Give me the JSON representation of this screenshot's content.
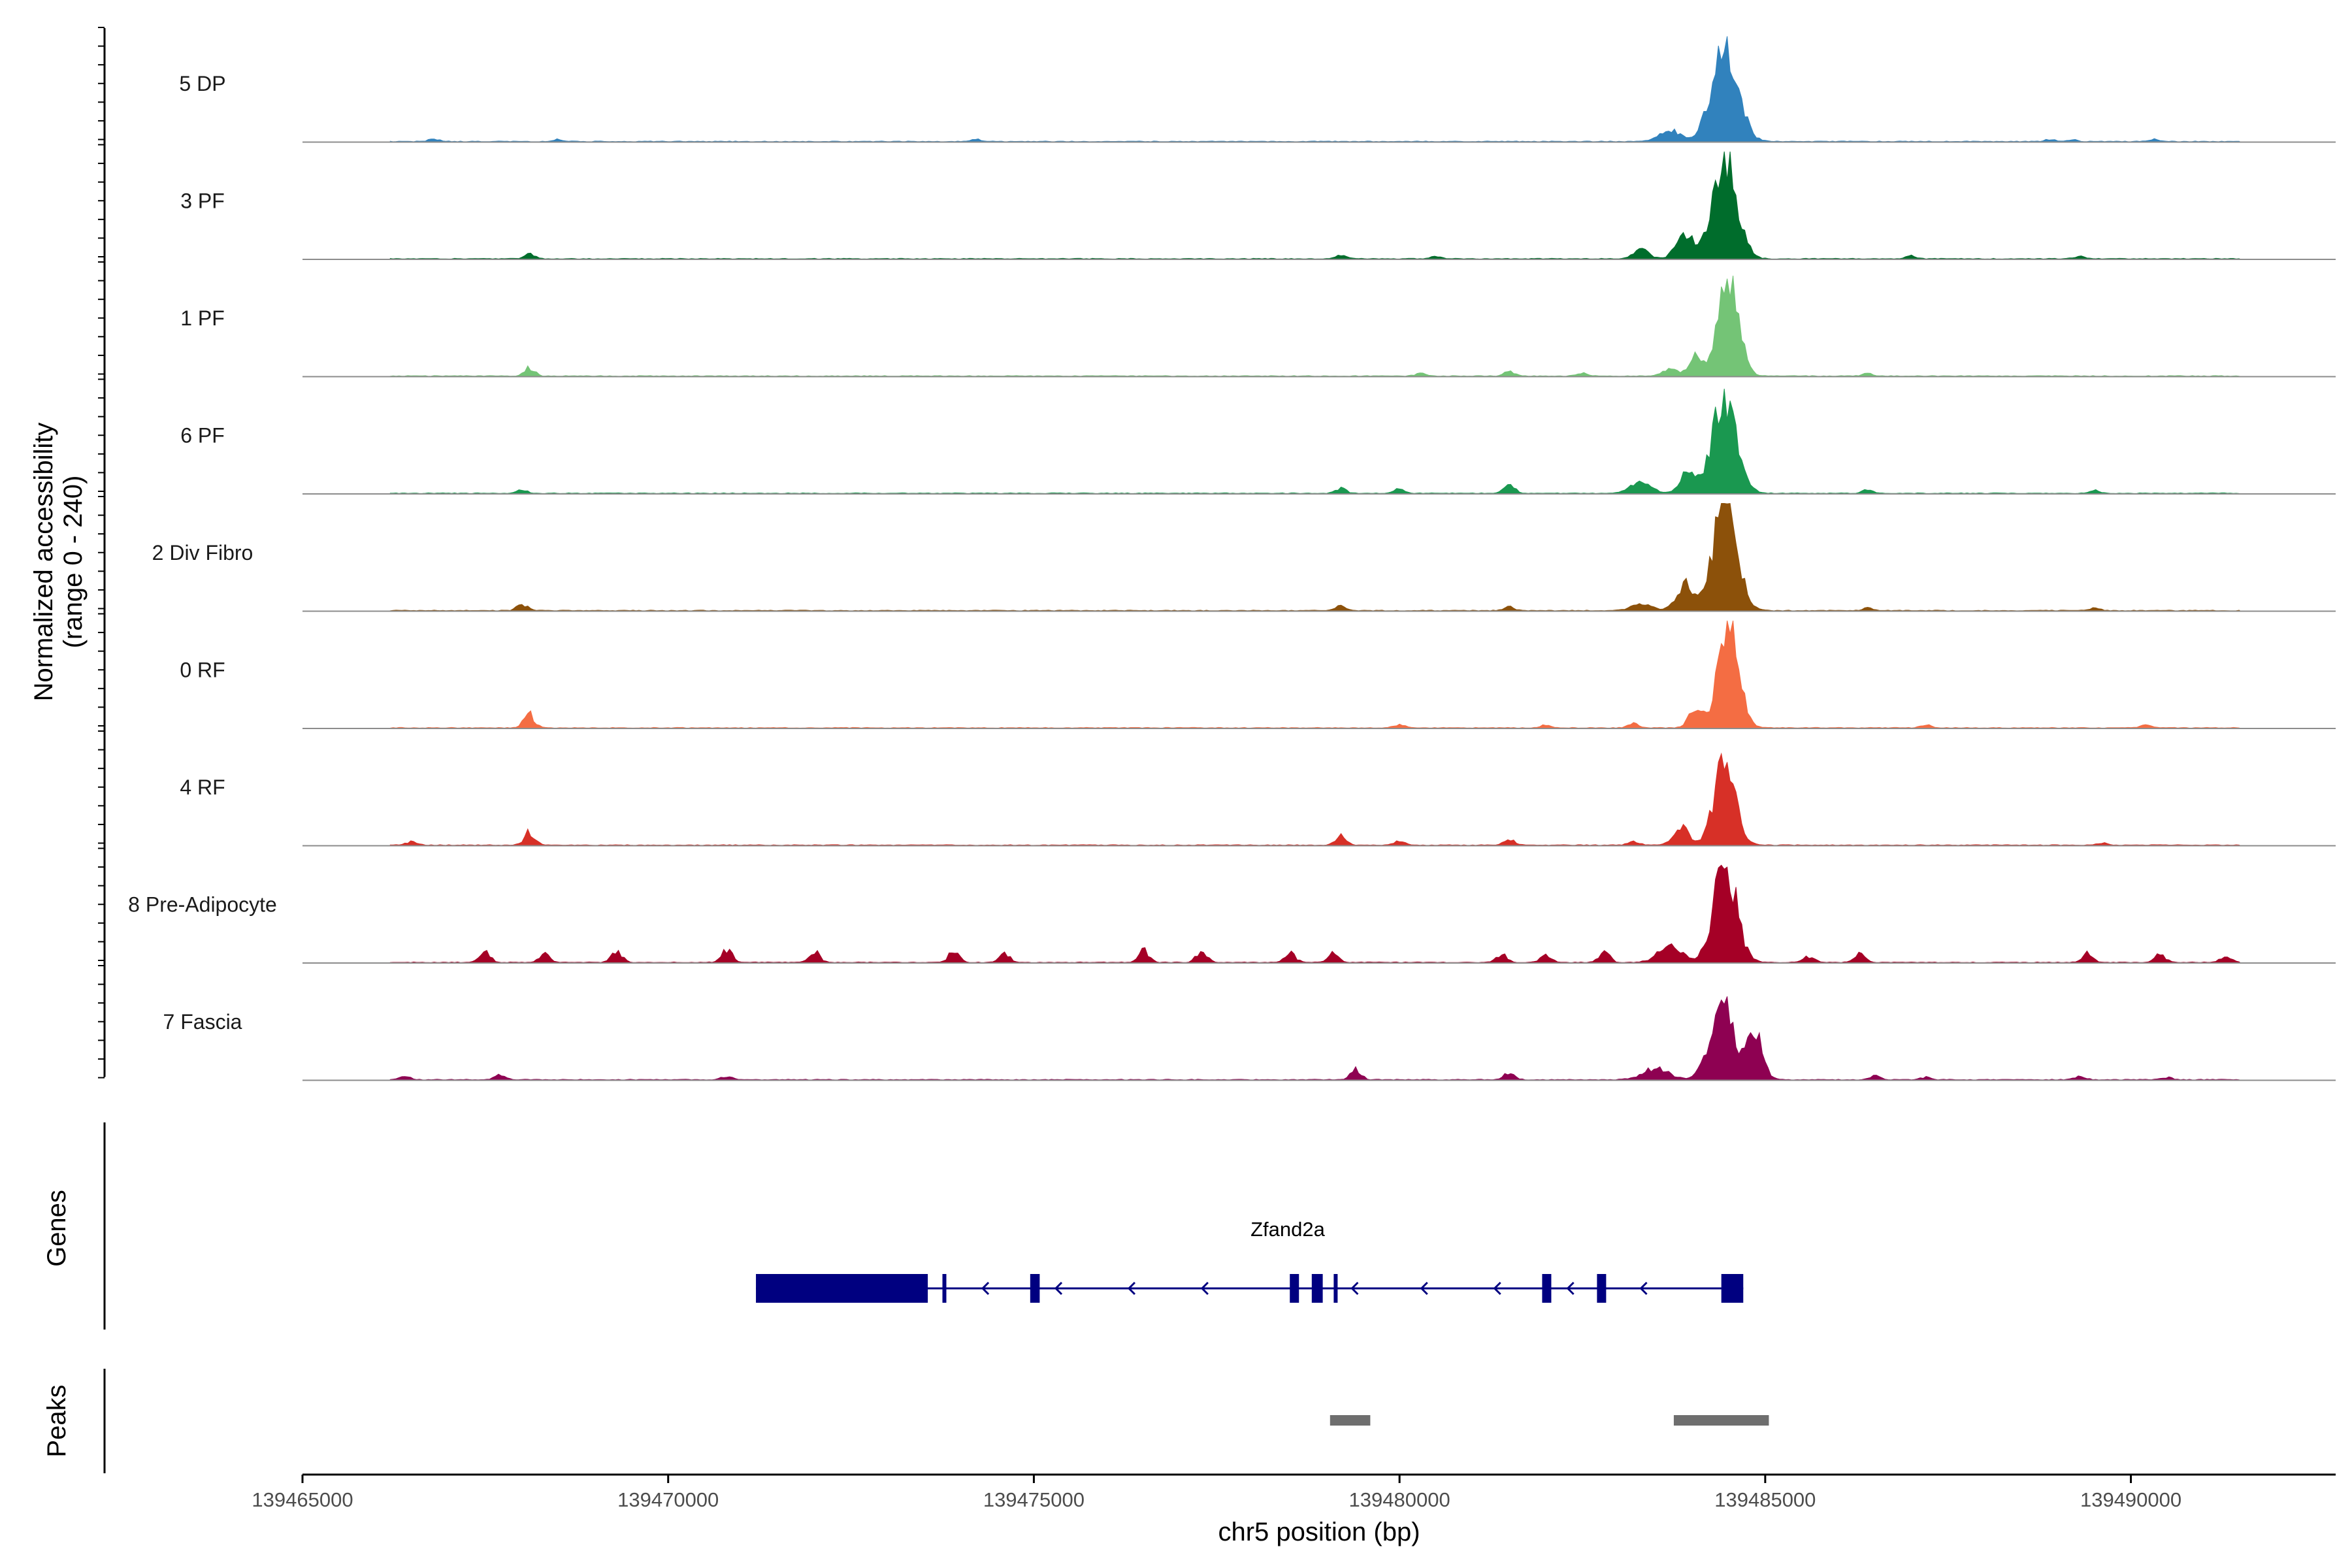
{
  "chart_data": {
    "type": "area",
    "title": "",
    "ylabel_lines": [
      "Normalized accessibility",
      "(range 0 - 240)"
    ],
    "ylim": [
      0,
      240
    ],
    "xlabel": "chr5 position (bp)",
    "xlim": [
      139465000,
      139492800
    ],
    "x_ticks": [
      139465000,
      139470000,
      139475000,
      139480000,
      139485000,
      139490000
    ],
    "x_tick_labels": [
      "139465000",
      "139470000",
      "139475000",
      "139480000",
      "139485000",
      "139490000"
    ],
    "coverage_range": [
      139466200,
      139491500
    ],
    "tracks": [
      {
        "name": "5 DP",
        "color": "#3182BD",
        "peaks": [
          [
            139484450,
            220,
            250
          ],
          [
            139483700,
            25,
            200
          ]
        ],
        "small": [
          [
            139466800,
            6
          ],
          [
            139468500,
            5
          ],
          [
            139474200,
            5
          ],
          [
            139488900,
            5
          ],
          [
            139489200,
            4
          ],
          [
            139490300,
            5
          ]
        ]
      },
      {
        "name": "3 PF",
        "color": "#006D2C",
        "peaks": [
          [
            139484450,
            235,
            230
          ],
          [
            139483900,
            60,
            160
          ],
          [
            139483300,
            20,
            150
          ]
        ],
        "small": [
          [
            139468100,
            12
          ],
          [
            139479200,
            8
          ],
          [
            139480500,
            6
          ],
          [
            139487000,
            6
          ],
          [
            139489300,
            5
          ]
        ]
      },
      {
        "name": "1 PF",
        "color": "#74C476",
        "peaks": [
          [
            139484500,
            215,
            200
          ],
          [
            139484050,
            50,
            120
          ],
          [
            139483700,
            15,
            150
          ]
        ],
        "small": [
          [
            139468100,
            18
          ],
          [
            139480300,
            8
          ],
          [
            139481500,
            10
          ],
          [
            139482500,
            6
          ],
          [
            139486400,
            6
          ]
        ]
      },
      {
        "name": "6 PF",
        "color": "#1A9850",
        "peaks": [
          [
            139484450,
            225,
            230
          ],
          [
            139483950,
            55,
            150
          ],
          [
            139483300,
            25,
            200
          ]
        ],
        "small": [
          [
            139468000,
            8
          ],
          [
            139479200,
            12
          ],
          [
            139480000,
            10
          ],
          [
            139481500,
            25
          ],
          [
            139486400,
            8
          ],
          [
            139489500,
            6
          ]
        ]
      },
      {
        "name": "2 Div Fibro",
        "color": "#8C510A",
        "peaks": [
          [
            139484450,
            235,
            230
          ],
          [
            139483900,
            60,
            160
          ],
          [
            139483300,
            15,
            200
          ]
        ],
        "small": [
          [
            139468000,
            15
          ],
          [
            139479200,
            12
          ],
          [
            139481500,
            10
          ],
          [
            139486400,
            6
          ],
          [
            139489500,
            6
          ]
        ]
      },
      {
        "name": "0 RF",
        "color": "#F46D43",
        "peaks": [
          [
            139484500,
            225,
            200
          ],
          [
            139484050,
            45,
            130
          ]
        ],
        "small": [
          [
            139468100,
            35
          ],
          [
            139480000,
            8
          ],
          [
            139482000,
            6
          ],
          [
            139483200,
            10
          ],
          [
            139487200,
            6
          ],
          [
            139490200,
            6
          ]
        ]
      },
      {
        "name": "4 RF",
        "color": "#D73027",
        "peaks": [
          [
            139484450,
            200,
            200
          ],
          [
            139483850,
            40,
            150
          ]
        ],
        "small": [
          [
            139466500,
            8
          ],
          [
            139468100,
            30
          ],
          [
            139479200,
            20
          ],
          [
            139480000,
            10
          ],
          [
            139481500,
            15
          ],
          [
            139483200,
            8
          ],
          [
            139489600,
            6
          ]
        ]
      },
      {
        "name": "8 Pre-Adipocyte",
        "color": "#A50026",
        "peaks": [
          [
            139484450,
            220,
            220
          ],
          [
            139483700,
            40,
            220
          ]
        ],
        "small": [
          [
            139467500,
            25
          ],
          [
            139468300,
            20
          ],
          [
            139469300,
            25
          ],
          [
            139470800,
            30
          ],
          [
            139472000,
            25
          ],
          [
            139473900,
            25
          ],
          [
            139474600,
            20
          ],
          [
            139476500,
            30
          ],
          [
            139477300,
            30
          ],
          [
            139478500,
            25
          ],
          [
            139479100,
            20
          ],
          [
            139481400,
            20
          ],
          [
            139482000,
            20
          ],
          [
            139482800,
            25
          ],
          [
            139485600,
            15
          ],
          [
            139486300,
            20
          ],
          [
            139489400,
            20
          ],
          [
            139490400,
            18
          ],
          [
            139491300,
            15
          ]
        ]
      },
      {
        "name": "7 Fascia",
        "color": "#8E0152",
        "peaks": [
          [
            139484400,
            175,
            220
          ],
          [
            139484850,
            120,
            150
          ],
          [
            139483500,
            25,
            250
          ]
        ],
        "small": [
          [
            139466400,
            8
          ],
          [
            139467700,
            10
          ],
          [
            139470800,
            8
          ],
          [
            139479400,
            22
          ],
          [
            139481500,
            15
          ],
          [
            139486500,
            8
          ],
          [
            139487200,
            6
          ],
          [
            139489300,
            8
          ],
          [
            139490500,
            6
          ]
        ]
      }
    ],
    "genes_label": "Genes",
    "gene": {
      "name": "Zfand2a",
      "color": "#000080",
      "strand": "-",
      "start": 139471200,
      "end": 139484700,
      "exons": [
        [
          139471200,
          139473550,
          "utr"
        ],
        [
          139473750,
          139473800,
          "thin"
        ],
        [
          139474950,
          139475080,
          "cds"
        ],
        [
          139478500,
          139478620,
          "cds"
        ],
        [
          139478800,
          139478950,
          "cds"
        ],
        [
          139479100,
          139479150,
          "thin"
        ],
        [
          139481950,
          139482050,
          "cds"
        ],
        [
          139482700,
          139482780,
          "cds"
        ],
        [
          139484400,
          139484700,
          "cds"
        ]
      ],
      "arrows": [
        139474300,
        139475300,
        139476300,
        139477300,
        139479350,
        139480300,
        139481300,
        139482300,
        139483300
      ]
    },
    "peaks_label": "Peaks",
    "peak_regions": [
      [
        139479050,
        139479600
      ],
      [
        139483750,
        139485050
      ]
    ],
    "peak_color": "#6E6E6E"
  }
}
